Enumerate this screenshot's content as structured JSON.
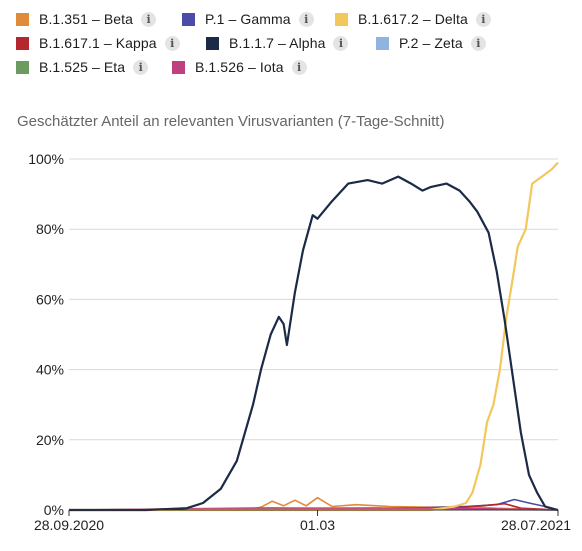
{
  "legend": [
    {
      "label": "B.1.351 – Beta",
      "color": "#e08a3c",
      "icon": "info-icon"
    },
    {
      "label": "P.1 – Gamma",
      "color": "#4c4ba6",
      "icon": "info-icon"
    },
    {
      "label": "B.1.617.2 – Delta",
      "color": "#f2c75c",
      "icon": "info-icon"
    },
    {
      "label": "B.1.617.1 – Kappa",
      "color": "#b3272d",
      "icon": "info-icon"
    },
    {
      "label": "B.1.1.7 – Alpha",
      "color": "#1b2a47",
      "icon": "info-icon"
    },
    {
      "label": "P.2 – Zeta",
      "color": "#8fb4df",
      "icon": "info-icon"
    },
    {
      "label": "B.1.525 – Eta",
      "color": "#6b9b5e",
      "icon": "info-icon"
    },
    {
      "label": "B.1.526 – Iota",
      "color": "#bf3f7f",
      "icon": "info-icon"
    }
  ],
  "subtitle": "Geschätzter Anteil an relevanten Virusvarianten (7-Tage-Schnitt)",
  "chart_data": {
    "type": "line",
    "subtitle": "Geschätzter Anteil an relevanten Virusvarianten (7-Tage-Schnitt)",
    "x_tick_labels": [
      "28.09.2020",
      "01.03",
      "28.07.2021"
    ],
    "y_tick_labels": [
      "0%",
      "20%",
      "40%",
      "60%",
      "80%",
      "100%"
    ],
    "ylim": [
      0,
      100
    ],
    "grid": "horizontal",
    "legend_position": "top",
    "x_start": "2020-09-28",
    "x_end": "2021-07-28",
    "series": [
      {
        "name": "B.1.1.7 – Alpha",
        "color": "#1b2a47",
        "points": [
          [
            "2020-09-28",
            0
          ],
          [
            "2020-11-15",
            0
          ],
          [
            "2020-12-10",
            0.5
          ],
          [
            "2020-12-20",
            2
          ],
          [
            "2020-12-31",
            6
          ],
          [
            "2021-01-10",
            14
          ],
          [
            "2021-01-20",
            30
          ],
          [
            "2021-01-25",
            40
          ],
          [
            "2021-01-31",
            50
          ],
          [
            "2021-02-05",
            55
          ],
          [
            "2021-02-08",
            53
          ],
          [
            "2021-02-10",
            47
          ],
          [
            "2021-02-15",
            62
          ],
          [
            "2021-02-20",
            74
          ],
          [
            "2021-02-26",
            84
          ],
          [
            "2021-03-01",
            83
          ],
          [
            "2021-03-10",
            88
          ],
          [
            "2021-03-20",
            93
          ],
          [
            "2021-04-01",
            94
          ],
          [
            "2021-04-10",
            93
          ],
          [
            "2021-04-20",
            95
          ],
          [
            "2021-04-28",
            93
          ],
          [
            "2021-05-05",
            91
          ],
          [
            "2021-05-10",
            92
          ],
          [
            "2021-05-20",
            93
          ],
          [
            "2021-05-28",
            91
          ],
          [
            "2021-06-03",
            88
          ],
          [
            "2021-06-08",
            85
          ],
          [
            "2021-06-15",
            79
          ],
          [
            "2021-06-20",
            68
          ],
          [
            "2021-06-25",
            54
          ],
          [
            "2021-06-30",
            38
          ],
          [
            "2021-07-05",
            22
          ],
          [
            "2021-07-10",
            10
          ],
          [
            "2021-07-15",
            5
          ],
          [
            "2021-07-20",
            1
          ],
          [
            "2021-07-28",
            0
          ]
        ]
      },
      {
        "name": "B.1.617.2 – Delta",
        "color": "#f2c75c",
        "points": [
          [
            "2020-09-28",
            0
          ],
          [
            "2021-05-10",
            0
          ],
          [
            "2021-05-25",
            1
          ],
          [
            "2021-06-01",
            2
          ],
          [
            "2021-06-05",
            5
          ],
          [
            "2021-06-10",
            13
          ],
          [
            "2021-06-14",
            25
          ],
          [
            "2021-06-18",
            30
          ],
          [
            "2021-06-22",
            40
          ],
          [
            "2021-06-26",
            55
          ],
          [
            "2021-06-30",
            66
          ],
          [
            "2021-07-03",
            75
          ],
          [
            "2021-07-08",
            80
          ],
          [
            "2021-07-12",
            93
          ],
          [
            "2021-07-18",
            95
          ],
          [
            "2021-07-24",
            97
          ],
          [
            "2021-07-28",
            99
          ]
        ]
      },
      {
        "name": "B.1.351 – Beta",
        "color": "#e08a3c",
        "points": [
          [
            "2020-09-28",
            0
          ],
          [
            "2021-01-15",
            0
          ],
          [
            "2021-01-25",
            0.8
          ],
          [
            "2021-02-01",
            2.5
          ],
          [
            "2021-02-08",
            1.2
          ],
          [
            "2021-02-15",
            2.8
          ],
          [
            "2021-02-22",
            1.2
          ],
          [
            "2021-03-01",
            3.5
          ],
          [
            "2021-03-10",
            1
          ],
          [
            "2021-03-25",
            1.5
          ],
          [
            "2021-04-15",
            1
          ],
          [
            "2021-05-10",
            0.8
          ],
          [
            "2021-06-01",
            1
          ],
          [
            "2021-06-20",
            0.5
          ],
          [
            "2021-07-28",
            0
          ]
        ]
      },
      {
        "name": "P.1 – Gamma",
        "color": "#4c4ba6",
        "points": [
          [
            "2020-09-28",
            0
          ],
          [
            "2021-03-01",
            0
          ],
          [
            "2021-04-01",
            0.5
          ],
          [
            "2021-05-01",
            0.6
          ],
          [
            "2021-06-01",
            1
          ],
          [
            "2021-06-20",
            1.5
          ],
          [
            "2021-07-01",
            3
          ],
          [
            "2021-07-10",
            2
          ],
          [
            "2021-07-20",
            1
          ],
          [
            "2021-07-28",
            0
          ]
        ]
      },
      {
        "name": "B.1.617.1 – Kappa",
        "color": "#b3272d",
        "points": [
          [
            "2020-09-28",
            0
          ],
          [
            "2021-05-01",
            0
          ],
          [
            "2021-06-01",
            0.8
          ],
          [
            "2021-06-25",
            1.8
          ],
          [
            "2021-07-05",
            0.5
          ],
          [
            "2021-07-28",
            0
          ]
        ]
      },
      {
        "name": "P.2 – Zeta",
        "color": "#8fb4df",
        "points": [
          [
            "2020-09-28",
            0
          ],
          [
            "2021-03-10",
            0.4
          ],
          [
            "2021-04-20",
            0.3
          ],
          [
            "2021-07-28",
            0
          ]
        ]
      },
      {
        "name": "B.1.525 – Eta",
        "color": "#6b9b5e",
        "points": [
          [
            "2020-09-28",
            0
          ],
          [
            "2021-02-20",
            0.5
          ],
          [
            "2021-04-01",
            0.6
          ],
          [
            "2021-05-10",
            0.3
          ],
          [
            "2021-07-28",
            0
          ]
        ]
      },
      {
        "name": "B.1.526 – Iota",
        "color": "#bf3f7f",
        "points": [
          [
            "2020-09-28",
            0
          ],
          [
            "2021-02-01",
            0.6
          ],
          [
            "2021-03-20",
            0.4
          ],
          [
            "2021-05-20",
            0.5
          ],
          [
            "2021-07-28",
            0
          ]
        ]
      }
    ]
  }
}
